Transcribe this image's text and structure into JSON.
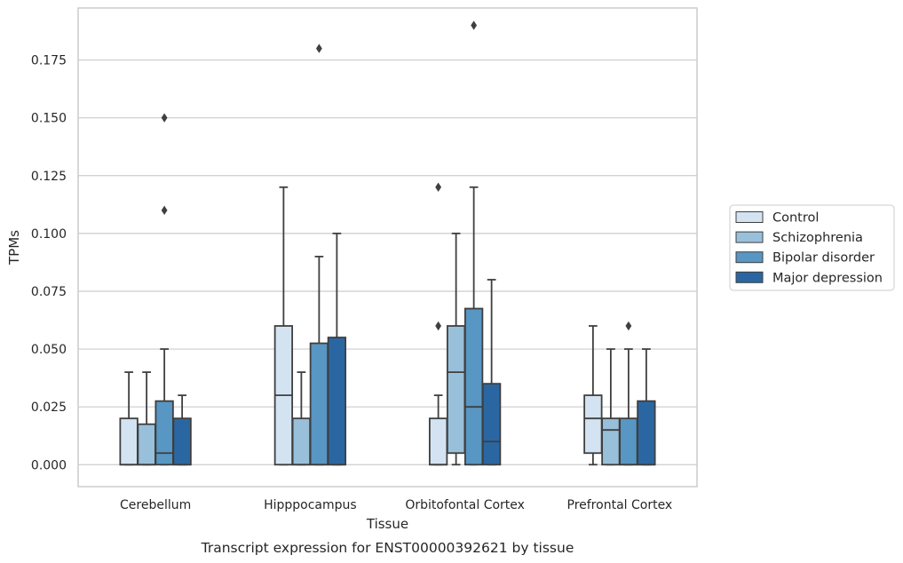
{
  "chart_data": {
    "type": "box",
    "caption": "Transcript expression for ENST00000392621 by tissue",
    "xlabel": "Tissue",
    "ylabel": "TPMs",
    "ylim": [
      -0.0095,
      0.1975
    ],
    "yticks": [
      "0.000",
      "0.025",
      "0.050",
      "0.075",
      "0.100",
      "0.125",
      "0.150",
      "0.175"
    ],
    "grid": "horizontal",
    "legend_position": "right",
    "categories": [
      "Cerebellum",
      "Hipppocampus",
      "Orbitofontal Cortex",
      "Prefrontal Cortex"
    ],
    "series": [
      {
        "name": "Control",
        "color": "#d3e3f1",
        "boxes": [
          {
            "whislo": 0.0,
            "q1": 0.0,
            "med": 0.0,
            "q3": 0.02,
            "whishi": 0.04,
            "fliers": []
          },
          {
            "whislo": 0.0,
            "q1": 0.0,
            "med": 0.03,
            "q3": 0.06,
            "whishi": 0.12,
            "fliers": []
          },
          {
            "whislo": 0.0,
            "q1": 0.0,
            "med": 0.0,
            "q3": 0.02,
            "whishi": 0.03,
            "fliers": [
              0.06,
              0.12
            ]
          },
          {
            "whislo": 0.0,
            "q1": 0.005,
            "med": 0.02,
            "q3": 0.03,
            "whishi": 0.06,
            "fliers": []
          }
        ]
      },
      {
        "name": "Schizophrenia",
        "color": "#99c0da",
        "boxes": [
          {
            "whislo": 0.0,
            "q1": 0.0,
            "med": 0.0,
            "q3": 0.0175,
            "whishi": 0.04,
            "fliers": []
          },
          {
            "whislo": 0.0,
            "q1": 0.0,
            "med": 0.0,
            "q3": 0.02,
            "whishi": 0.04,
            "fliers": []
          },
          {
            "whislo": 0.0,
            "q1": 0.005,
            "med": 0.04,
            "q3": 0.06,
            "whishi": 0.1,
            "fliers": []
          },
          {
            "whislo": 0.0,
            "q1": 0.0,
            "med": 0.015,
            "q3": 0.02,
            "whishi": 0.05,
            "fliers": []
          }
        ]
      },
      {
        "name": "Bipolar disorder",
        "color": "#5896c3",
        "boxes": [
          {
            "whislo": 0.0,
            "q1": 0.0,
            "med": 0.005,
            "q3": 0.0275,
            "whishi": 0.05,
            "fliers": [
              0.11,
              0.15
            ]
          },
          {
            "whislo": 0.0,
            "q1": 0.0,
            "med": 0.0,
            "q3": 0.0525,
            "whishi": 0.09,
            "fliers": [
              0.18
            ]
          },
          {
            "whislo": 0.0,
            "q1": 0.0,
            "med": 0.025,
            "q3": 0.0675,
            "whishi": 0.12,
            "fliers": [
              0.19
            ]
          },
          {
            "whislo": 0.0,
            "q1": 0.0,
            "med": 0.0,
            "q3": 0.02,
            "whishi": 0.05,
            "fliers": [
              0.06
            ]
          }
        ]
      },
      {
        "name": "Major depression",
        "color": "#2a67a2",
        "boxes": [
          {
            "whislo": 0.0,
            "q1": 0.0,
            "med": 0.0,
            "q3": 0.02,
            "whishi": 0.03,
            "fliers": []
          },
          {
            "whislo": 0.0,
            "q1": 0.0,
            "med": 0.0,
            "q3": 0.055,
            "whishi": 0.1,
            "fliers": []
          },
          {
            "whislo": 0.0,
            "q1": 0.0,
            "med": 0.01,
            "q3": 0.035,
            "whishi": 0.08,
            "fliers": []
          },
          {
            "whislo": 0.0,
            "q1": 0.0,
            "med": 0.0,
            "q3": 0.0275,
            "whishi": 0.05,
            "fliers": []
          }
        ]
      }
    ]
  }
}
